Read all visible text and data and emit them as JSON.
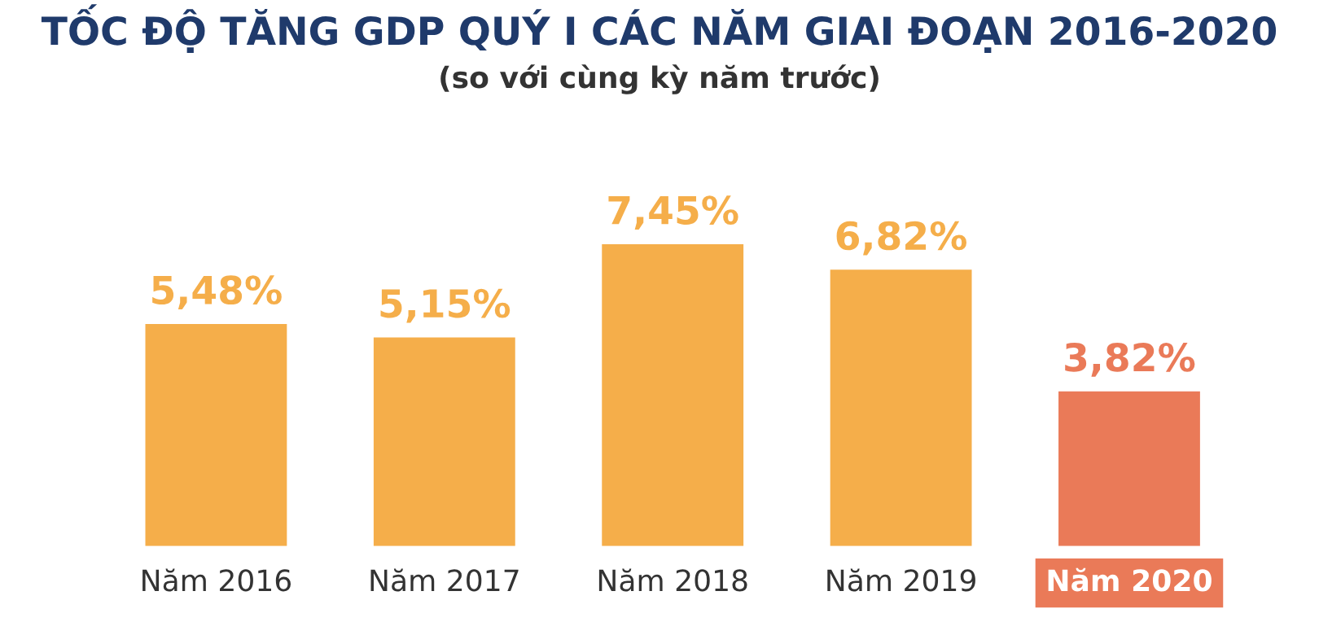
{
  "chart_data": {
    "type": "bar",
    "title": "TỐC ĐỘ TĂNG GDP QUÝ I CÁC NĂM GIAI ĐOẠN 2016-2020",
    "subtitle": "(so với cùng kỳ năm trước)",
    "categories": [
      "Năm 2016",
      "Năm 2017",
      "Năm 2018",
      "Năm 2019",
      "Năm 2020"
    ],
    "values": [
      5.48,
      5.15,
      7.45,
      6.82,
      3.82
    ],
    "colors": [
      "#f5ae4a",
      "#f5ae4a",
      "#f5ae4a",
      "#f5ae4a",
      "#ea7a58"
    ],
    "value_labels": [
      "5,48%",
      "5,15%",
      "7,45%",
      "6,82%",
      "3,82%"
    ],
    "tick_labels": "x",
    "grid": false,
    "legend": false
  }
}
